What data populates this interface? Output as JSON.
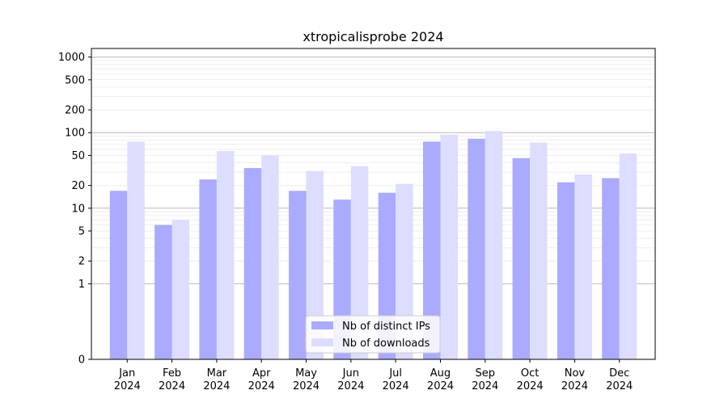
{
  "chart_data": {
    "type": "bar",
    "title": "xtropicalisprobe 2024",
    "xlabel": "",
    "ylabel": "",
    "y_scale": "symlog",
    "ylim": [
      0,
      1300
    ],
    "y_ticks": [
      0,
      1,
      2,
      5,
      10,
      20,
      50,
      100,
      200,
      500,
      1000
    ],
    "y_tick_labels": [
      "0",
      "1",
      "2",
      "5",
      "10",
      "20",
      "50",
      "100",
      "200",
      "500",
      "1000"
    ],
    "grid": "horizontal",
    "legend_position": "lower-center",
    "categories": [
      "Jan\n2024",
      "Feb\n2024",
      "Mar\n2024",
      "Apr\n2024",
      "May\n2024",
      "Jun\n2024",
      "Jul\n2024",
      "Aug\n2024",
      "Sep\n2024",
      "Oct\n2024",
      "Nov\n2024",
      "Dec\n2024"
    ],
    "series": [
      {
        "name": "Nb of distinct IPs",
        "color": "#aaaaff",
        "values": [
          17,
          6,
          24,
          34,
          17,
          13,
          16,
          76,
          83,
          46,
          22,
          25
        ]
      },
      {
        "name": "Nb of downloads",
        "color": "#ddddff",
        "values": [
          76,
          7,
          57,
          50,
          31,
          36,
          21,
          94,
          105,
          74,
          28,
          53
        ]
      }
    ]
  }
}
